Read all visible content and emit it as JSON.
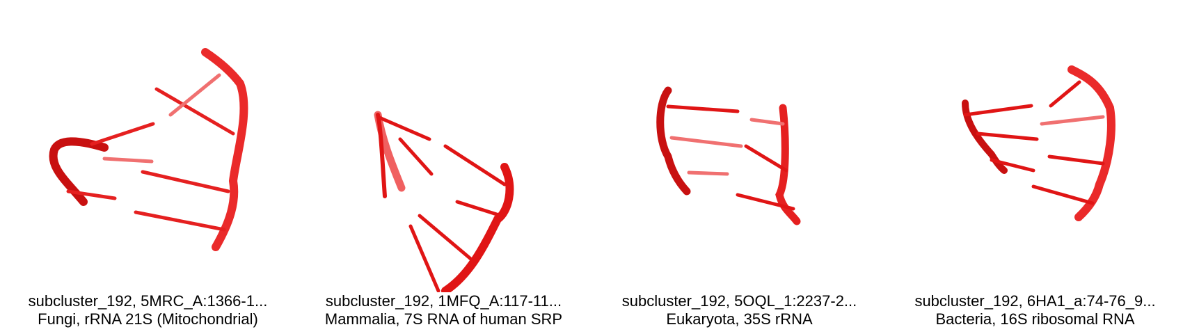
{
  "panels": [
    {
      "id": "subcluster_192, 5MRC_A:1366-1...",
      "description": "Fungi, rRNA 21S (Mitochondrial)"
    },
    {
      "id": "subcluster_192, 1MFQ_A:117-11...",
      "description": "Mammalia, 7S RNA of human SRP"
    },
    {
      "id": "subcluster_192, 5OQL_1:2237-2...",
      "description": "Eukaryota, 35S rRNA"
    },
    {
      "id": "subcluster_192, 6HA1_a:74-76_9...",
      "description": "Bacteria, 16S ribosomal RNA"
    }
  ],
  "colors": {
    "backbone": "#e01515",
    "backbone_light": "#f06060",
    "backbone_dark": "#8a0000"
  }
}
